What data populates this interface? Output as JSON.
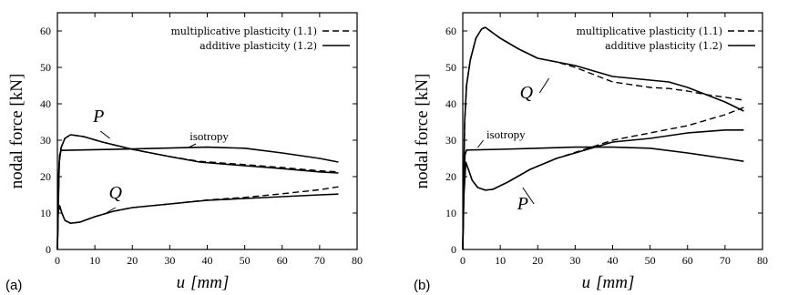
{
  "chart_data": [
    {
      "type": "line",
      "panel_label": "(a)",
      "xlabel_var": "u",
      "xlabel_unit": "[mm]",
      "ylabel": "nodal force [kN]",
      "xlim": [
        0,
        80
      ],
      "ylim": [
        0,
        65
      ],
      "xticks": [
        0,
        10,
        20,
        30,
        40,
        50,
        60,
        70,
        80
      ],
      "yticks": [
        0,
        10,
        20,
        30,
        40,
        50,
        60
      ],
      "grid": false,
      "legend_position": "top-right",
      "legend": [
        {
          "label": "multiplicative plasticity (1.1)",
          "style": "dashed"
        },
        {
          "label": "additive plasticity (1.2)",
          "style": "solid"
        }
      ],
      "annotations": [
        {
          "text": "P",
          "x": 11,
          "y": 35
        },
        {
          "text": "Q",
          "x": 15.5,
          "y": 14
        },
        {
          "text": "isotropy",
          "x": 40.5,
          "y": 30
        }
      ],
      "series": [
        {
          "style": "solid",
          "points": [
            [
              0,
              0
            ],
            [
              0.3,
              20
            ],
            [
              0.6,
              26
            ],
            [
              1,
              27.2
            ],
            [
              5,
              27.3
            ],
            [
              20,
              27.6
            ],
            [
              40,
              28.1
            ],
            [
              50,
              27.8
            ],
            [
              60,
              26.5
            ],
            [
              70,
              25
            ],
            [
              75,
              24
            ]
          ]
        },
        {
          "style": "solid",
          "points": [
            [
              0,
              0
            ],
            [
              0.5,
              24
            ],
            [
              1,
              28
            ],
            [
              2,
              30.5
            ],
            [
              3.5,
              31.5
            ],
            [
              7,
              31
            ],
            [
              12,
              29.5
            ],
            [
              20,
              27.5
            ],
            [
              25,
              26.5
            ],
            [
              30,
              25.5
            ],
            [
              38,
              24
            ],
            [
              50,
              23
            ],
            [
              60,
              22.2
            ],
            [
              70,
              21.3
            ],
            [
              75,
              21
            ]
          ]
        },
        {
          "style": "dashed",
          "points": [
            [
              0,
              0
            ],
            [
              0.5,
              24
            ],
            [
              1,
              28
            ],
            [
              2,
              30.5
            ],
            [
              3.5,
              31.5
            ],
            [
              7,
              31
            ],
            [
              12,
              29.5
            ],
            [
              20,
              27.5
            ],
            [
              25,
              26.5
            ],
            [
              30,
              25.5
            ],
            [
              38,
              24.2
            ],
            [
              50,
              23.3
            ],
            [
              60,
              22.5
            ],
            [
              70,
              21.6
            ],
            [
              75,
              21.3
            ]
          ]
        },
        {
          "style": "solid",
          "points": [
            [
              0,
              0
            ],
            [
              0.2,
              10
            ],
            [
              0.6,
              12
            ],
            [
              1.2,
              10
            ],
            [
              2,
              8
            ],
            [
              3.5,
              7.2
            ],
            [
              6,
              7.5
            ],
            [
              10,
              9
            ],
            [
              15,
              10.5
            ],
            [
              20,
              11.5
            ],
            [
              30,
              12.5
            ],
            [
              40,
              13.5
            ],
            [
              50,
              14
            ],
            [
              60,
              14.5
            ],
            [
              70,
              15
            ],
            [
              75,
              15.2
            ]
          ]
        },
        {
          "style": "dashed",
          "points": [
            [
              0,
              0
            ],
            [
              0.2,
              10
            ],
            [
              0.6,
              12
            ],
            [
              1.2,
              10
            ],
            [
              2,
              8
            ],
            [
              3.5,
              7.2
            ],
            [
              6,
              7.5
            ],
            [
              10,
              9
            ],
            [
              15,
              10.5
            ],
            [
              20,
              11.5
            ],
            [
              30,
              12.5
            ],
            [
              40,
              13.6
            ],
            [
              50,
              14.3
            ],
            [
              60,
              15.3
            ],
            [
              70,
              16.4
            ],
            [
              75,
              17.2
            ]
          ]
        }
      ]
    },
    {
      "type": "line",
      "panel_label": "(b)",
      "xlabel_var": "u",
      "xlabel_unit": "[mm]",
      "ylabel": "nodal force [kN]",
      "xlim": [
        0,
        80
      ],
      "ylim": [
        0,
        65
      ],
      "xticks": [
        0,
        10,
        20,
        30,
        40,
        50,
        60,
        70,
        80
      ],
      "yticks": [
        0,
        10,
        20,
        30,
        40,
        50,
        60
      ],
      "grid": false,
      "legend_position": "top-right",
      "legend": [
        {
          "label": "multiplicative plasticity (1.1)",
          "style": "dashed"
        },
        {
          "label": "additive plasticity (1.2)",
          "style": "solid"
        }
      ],
      "annotations": [
        {
          "text": "Q",
          "x": 17,
          "y": 41.5
        },
        {
          "text": "isotropy",
          "x": 11.5,
          "y": 30.5
        },
        {
          "text": "P",
          "x": 16,
          "y": 11
        }
      ],
      "series": [
        {
          "style": "solid",
          "points": [
            [
              0,
              0
            ],
            [
              0.5,
              35
            ],
            [
              1,
              45
            ],
            [
              2,
              52
            ],
            [
              3.5,
              58
            ],
            [
              5,
              60.5
            ],
            [
              6,
              61
            ],
            [
              10,
              58
            ],
            [
              15,
              55
            ],
            [
              20,
              52.5
            ],
            [
              25,
              51.5
            ],
            [
              30,
              50.5
            ],
            [
              40,
              47.5
            ],
            [
              50,
              46.5
            ],
            [
              55,
              46
            ],
            [
              60,
              44.5
            ],
            [
              65,
              42.5
            ],
            [
              70,
              40.5
            ],
            [
              75,
              38
            ]
          ]
        },
        {
          "style": "dashed",
          "points": [
            [
              0,
              0
            ],
            [
              0.5,
              35
            ],
            [
              1,
              45
            ],
            [
              2,
              52
            ],
            [
              3.5,
              58
            ],
            [
              5,
              60.5
            ],
            [
              6,
              61
            ],
            [
              10,
              58
            ],
            [
              15,
              55
            ],
            [
              20,
              52.5
            ],
            [
              25,
              51.5
            ],
            [
              30,
              50
            ],
            [
              40,
              46
            ],
            [
              50,
              44.5
            ],
            [
              55,
              44.2
            ],
            [
              60,
              43.5
            ],
            [
              65,
              42.5
            ],
            [
              70,
              41.8
            ],
            [
              75,
              41
            ]
          ]
        },
        {
          "style": "solid",
          "points": [
            [
              0,
              0
            ],
            [
              0.3,
              20
            ],
            [
              0.6,
              26
            ],
            [
              1,
              27.3
            ],
            [
              10,
              27.5
            ],
            [
              20,
              27.8
            ],
            [
              30,
              28.1
            ],
            [
              40,
              28.1
            ],
            [
              50,
              27.8
            ],
            [
              60,
              26.5
            ],
            [
              70,
              25
            ],
            [
              75,
              24.2
            ]
          ]
        },
        {
          "style": "solid",
          "points": [
            [
              0,
              0
            ],
            [
              0.3,
              15
            ],
            [
              0.8,
              24
            ],
            [
              1.5,
              22
            ],
            [
              2.5,
              19
            ],
            [
              4,
              17
            ],
            [
              6,
              16.3
            ],
            [
              8,
              16.5
            ],
            [
              12,
              18.5
            ],
            [
              18,
              22
            ],
            [
              25,
              25
            ],
            [
              35,
              28
            ],
            [
              40,
              29.5
            ],
            [
              50,
              30.5
            ],
            [
              60,
              32
            ],
            [
              70,
              32.8
            ],
            [
              75,
              32.8
            ]
          ]
        },
        {
          "style": "dashed",
          "points": [
            [
              0,
              0
            ],
            [
              0.3,
              15
            ],
            [
              0.8,
              24
            ],
            [
              1.5,
              22
            ],
            [
              2.5,
              19
            ],
            [
              4,
              17
            ],
            [
              6,
              16.3
            ],
            [
              8,
              16.5
            ],
            [
              12,
              18.5
            ],
            [
              18,
              22
            ],
            [
              25,
              25
            ],
            [
              35,
              28.3
            ],
            [
              40,
              30
            ],
            [
              50,
              32
            ],
            [
              60,
              34
            ],
            [
              70,
              37
            ],
            [
              75,
              39
            ]
          ]
        }
      ]
    }
  ]
}
